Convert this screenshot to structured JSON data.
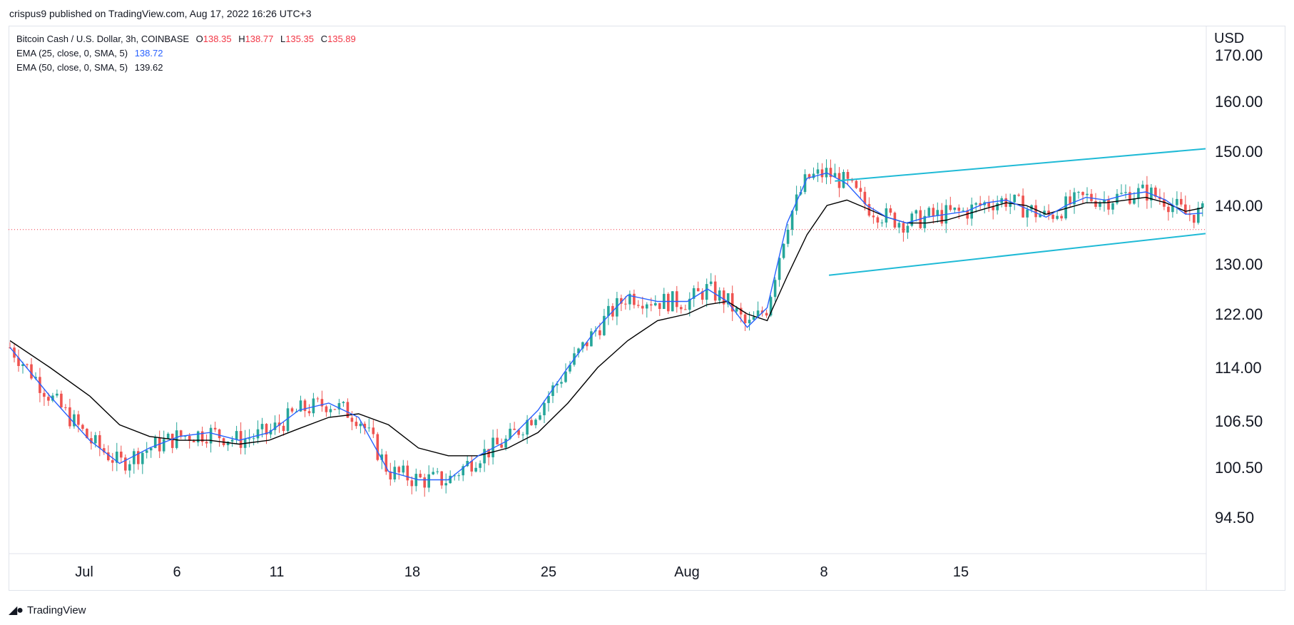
{
  "header": {
    "published": "crispus9 published on TradingView.com, Aug 17, 2022 16:26 UTC+3"
  },
  "legend": {
    "symbol": "Bitcoin Cash / U.S. Dollar, 3h, COINBASE",
    "o_label": "O",
    "o_value": "138.35",
    "h_label": "H",
    "h_value": "138.77",
    "l_label": "L",
    "l_value": "135.35",
    "c_label": "C",
    "c_value": "135.89",
    "ema25_label": "EMA (25, close, 0, SMA, 5)",
    "ema25_value": "138.72",
    "ema50_label": "EMA (50, close, 0, SMA, 5)",
    "ema50_value": "139.62"
  },
  "axis": {
    "currency": "USD"
  },
  "footer": {
    "brand": "TradingView"
  },
  "colors": {
    "up": "#26a69a",
    "down": "#ef5350",
    "ema25": "#2962ff",
    "ema50": "#000000",
    "channel": "#1fbad6",
    "priceline": "#f23645"
  },
  "chart_data": {
    "type": "candlestick",
    "title": "Bitcoin Cash / U.S. Dollar, 3h, COINBASE",
    "ylabel": "USD",
    "ylim": [
      89,
      171
    ],
    "y_ticks": [
      "170.00",
      "160.00",
      "150.00",
      "140.00",
      "130.00",
      "122.00",
      "114.00",
      "106.50",
      "100.50",
      "94.50"
    ],
    "x_ticks": [
      "Jul",
      "6",
      "11",
      "18",
      "25",
      "Aug",
      "8",
      "15"
    ],
    "last_price": 135.89,
    "ema25_path": [
      [
        0,
        117
      ],
      [
        40,
        110
      ],
      [
        80,
        104
      ],
      [
        110,
        101
      ],
      [
        140,
        103
      ],
      [
        170,
        104.5
      ],
      [
        200,
        105
      ],
      [
        230,
        104
      ],
      [
        260,
        105
      ],
      [
        290,
        108
      ],
      [
        320,
        109
      ],
      [
        350,
        107
      ],
      [
        380,
        100
      ],
      [
        410,
        99
      ],
      [
        440,
        99
      ],
      [
        470,
        102
      ],
      [
        500,
        104
      ],
      [
        530,
        108
      ],
      [
        560,
        114
      ],
      [
        590,
        120
      ],
      [
        620,
        125
      ],
      [
        650,
        124
      ],
      [
        680,
        124
      ],
      [
        700,
        126
      ],
      [
        720,
        124
      ],
      [
        740,
        120
      ],
      [
        760,
        123
      ],
      [
        780,
        137
      ],
      [
        800,
        145
      ],
      [
        820,
        146
      ],
      [
        840,
        144
      ],
      [
        860,
        140
      ],
      [
        880,
        138
      ],
      [
        900,
        137
      ],
      [
        920,
        138
      ],
      [
        940,
        138.5
      ],
      [
        960,
        139
      ],
      [
        980,
        140.5
      ],
      [
        1000,
        141
      ],
      [
        1020,
        139.5
      ],
      [
        1040,
        138
      ],
      [
        1060,
        140
      ],
      [
        1080,
        141.5
      ],
      [
        1100,
        141
      ],
      [
        1120,
        142
      ],
      [
        1140,
        142.5
      ],
      [
        1160,
        141
      ],
      [
        1180,
        138.5
      ],
      [
        1197,
        138.7
      ]
    ],
    "ema50_path": [
      [
        0,
        118
      ],
      [
        40,
        114
      ],
      [
        80,
        110
      ],
      [
        110,
        106
      ],
      [
        140,
        104.5
      ],
      [
        170,
        104
      ],
      [
        200,
        104
      ],
      [
        230,
        103.5
      ],
      [
        260,
        104
      ],
      [
        290,
        105.5
      ],
      [
        320,
        107
      ],
      [
        350,
        107.5
      ],
      [
        380,
        106
      ],
      [
        410,
        103
      ],
      [
        440,
        102
      ],
      [
        470,
        102
      ],
      [
        500,
        103
      ],
      [
        530,
        105
      ],
      [
        560,
        109
      ],
      [
        590,
        114
      ],
      [
        620,
        118
      ],
      [
        650,
        121
      ],
      [
        680,
        122
      ],
      [
        700,
        123.5
      ],
      [
        720,
        124
      ],
      [
        740,
        122
      ],
      [
        760,
        121
      ],
      [
        780,
        128
      ],
      [
        800,
        135
      ],
      [
        820,
        140
      ],
      [
        840,
        141
      ],
      [
        860,
        139.5
      ],
      [
        880,
        138
      ],
      [
        900,
        137
      ],
      [
        920,
        137
      ],
      [
        940,
        137.5
      ],
      [
        960,
        138.5
      ],
      [
        980,
        139.5
      ],
      [
        1000,
        140.5
      ],
      [
        1020,
        140
      ],
      [
        1040,
        138.5
      ],
      [
        1060,
        139.5
      ],
      [
        1080,
        140.5
      ],
      [
        1100,
        140.5
      ],
      [
        1120,
        141
      ],
      [
        1140,
        141.5
      ],
      [
        1160,
        140.5
      ],
      [
        1180,
        139
      ],
      [
        1197,
        139.6
      ]
    ],
    "channel_upper": [
      [
        828,
        144.5
      ],
      [
        1200,
        150.5
      ]
    ],
    "channel_lower": [
      [
        822,
        128.2
      ],
      [
        1200,
        135.2
      ]
    ]
  }
}
